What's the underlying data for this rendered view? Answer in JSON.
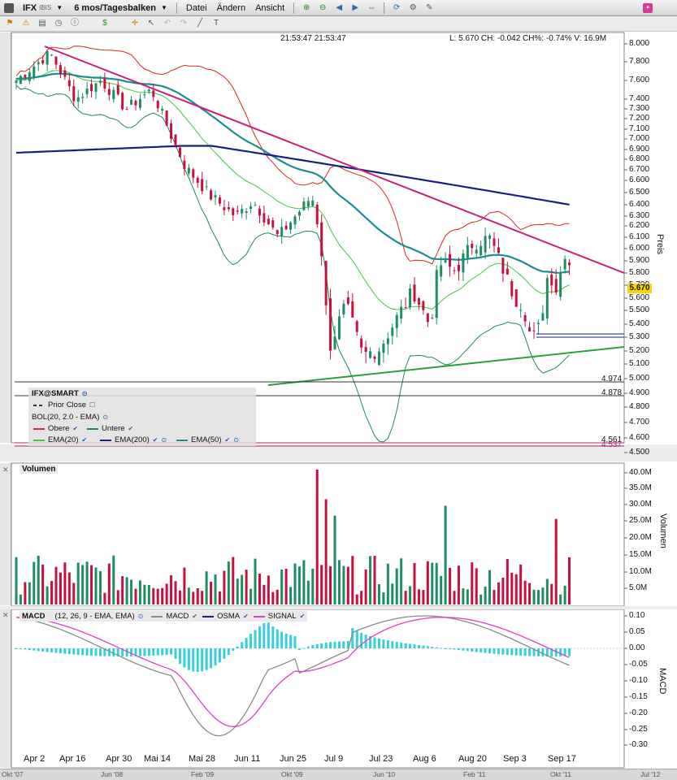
{
  "toolbar": {
    "symbol": "IFX",
    "exchange": "IBIS",
    "period": "6 mos/Tagesbalken",
    "menus": [
      "Datei",
      "Ändern",
      "Ansicht"
    ]
  },
  "header": {
    "time": "21:53:47 21:53:47",
    "quote": "L: 5.670 CH: -0.042 CH%: -0.74% V: 16.9M"
  },
  "price_panel": {
    "axis_title": "Preis",
    "ticks": [
      "8.000",
      "7.800",
      "7.600",
      "7.400",
      "7.300",
      "7.200",
      "7.100",
      "7.000",
      "6.900",
      "6.800",
      "6.700",
      "6.600",
      "6.500",
      "6.400",
      "6.300",
      "6.200",
      "6.100",
      "6.000",
      "5.900",
      "5.800",
      "5.700",
      "5.600",
      "5.500",
      "5.400",
      "5.300",
      "5.200",
      "5.100",
      "5.000",
      "4.900",
      "4.800",
      "4.700",
      "4.600",
      "4.500"
    ],
    "last_price": "5.670",
    "ref_labels": [
      "4.974",
      "4.878",
      "4.561",
      "4.537"
    ]
  },
  "legend": {
    "title": "IFX@SMART",
    "prior_close": "Prior Close",
    "bol": "BOL(20, 2.0 - EMA)",
    "items": [
      {
        "label": "Obere",
        "color": "#e0241b"
      },
      {
        "label": "Untere",
        "color": "#1a8a5a"
      },
      {
        "label": "EMA(20)",
        "color": "#3fc73f"
      },
      {
        "label": "EMA(200)",
        "color": "#14217e"
      },
      {
        "label": "EMA(50)",
        "color": "#1c8e92"
      }
    ]
  },
  "volume_panel": {
    "tag": "Volumen",
    "axis_title": "Volumen",
    "ticks": [
      "40.0M",
      "35.0M",
      "30.0M",
      "25.0M",
      "20.0M",
      "15.0M",
      "10.0M",
      "5.0M"
    ]
  },
  "macd_panel": {
    "tag": "MACD",
    "params": "(12, 26, 9 - EMA, EMA)",
    "legend": [
      {
        "label": "MACD",
        "color": "#8a8a8a"
      },
      {
        "label": "OSMA",
        "color": "#14217e"
      },
      {
        "label": "SIGNAL",
        "color": "#e040c8"
      }
    ],
    "axis_title": "MACD",
    "ticks": [
      "0.10",
      "0.05",
      "0.00",
      "-0.05",
      "-0.10",
      "-0.15",
      "-0.20",
      "-0.25",
      "-0.30"
    ]
  },
  "x_axis": [
    "Apr 2",
    "Apr 16",
    "Apr 30",
    "Mai 14",
    "Mai 28",
    "Jun 11",
    "Jun 25",
    "Jul 9",
    "Jul 23",
    "Aug 6",
    "Aug 20",
    "Sep 3",
    "Sep 17"
  ],
  "overview_axis": [
    "Okt '07",
    "Jun '08",
    "Feb '09",
    "Okt '09",
    "Jun '10",
    "Feb '11",
    "Okt '11",
    "Jul '12"
  ],
  "colors": {
    "bull": "#1e8c64",
    "bear": "#c8103f",
    "trendline_down": "#c8207a",
    "trendline_up": "#2aa03a"
  }
}
